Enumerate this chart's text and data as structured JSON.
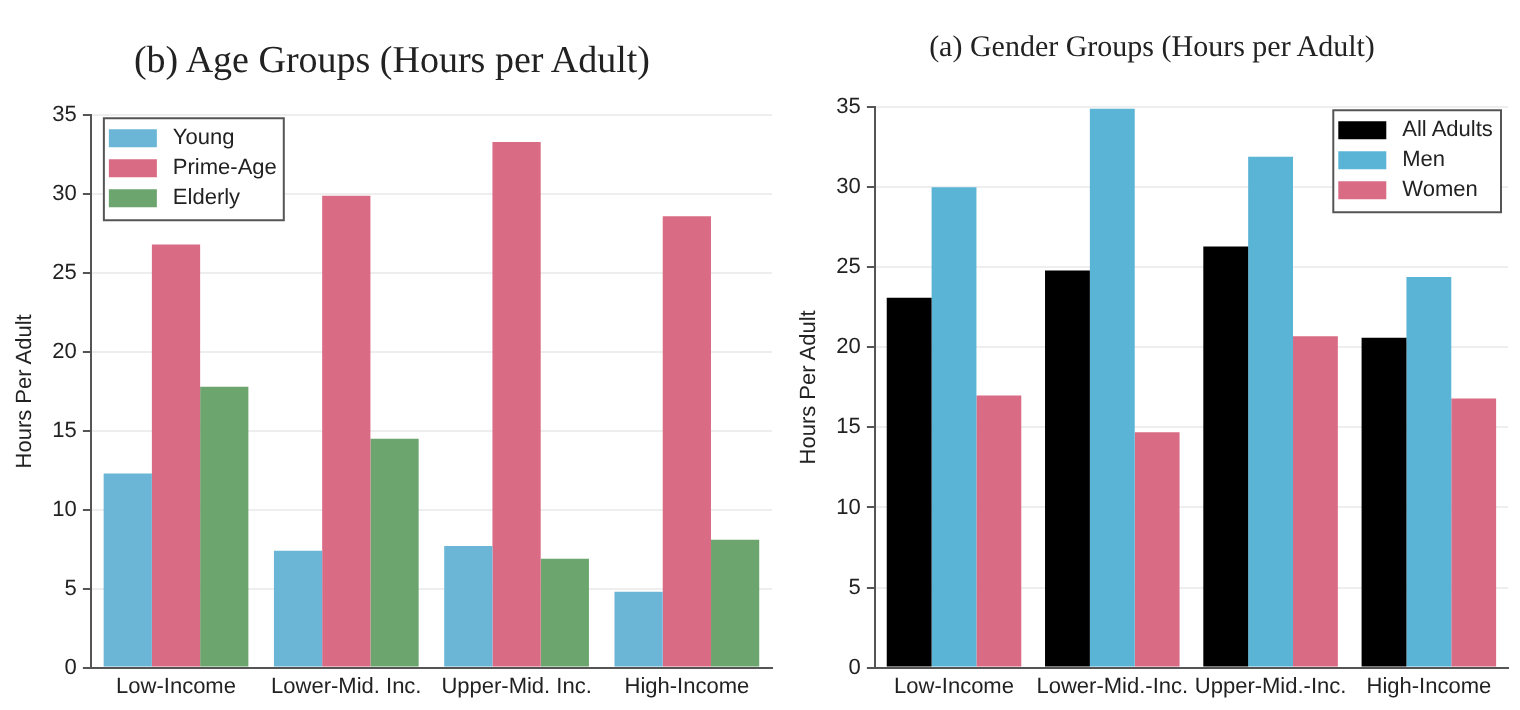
{
  "chart_data": [
    {
      "type": "bar",
      "title": "(b) Age Groups (Hours per Adult)",
      "ylabel": "Hours Per Adult",
      "categories": [
        "Low-Income",
        "Lower-Mid. Inc.",
        "Upper-Mid. Inc.",
        "High-Income"
      ],
      "series": [
        {
          "name": "Young",
          "color": "#6bb6d6",
          "values": [
            12.3,
            7.4,
            7.7,
            4.8
          ]
        },
        {
          "name": "Prime-Age",
          "color": "#d96b85",
          "values": [
            26.8,
            29.9,
            33.3,
            28.6
          ]
        },
        {
          "name": "Elderly",
          "color": "#6da56f",
          "values": [
            17.8,
            14.5,
            6.9,
            8.1
          ]
        }
      ],
      "ylim": [
        0,
        35
      ],
      "yticks": [
        0,
        5,
        10,
        15,
        20,
        25,
        30,
        35
      ],
      "grid": "y",
      "legend": "top left"
    },
    {
      "type": "bar",
      "title": "(a) Gender Groups (Hours per Adult)",
      "ylabel": "Hours Per Adult",
      "categories": [
        "Low-Income",
        "Lower-Mid.-Inc.",
        "Upper-Mid.-Inc.",
        "High-Income"
      ],
      "series": [
        {
          "name": "All Adults",
          "color": "#000000",
          "values": [
            23.1,
            24.8,
            26.3,
            20.6
          ]
        },
        {
          "name": "Men",
          "color": "#5ab4d6",
          "values": [
            30.0,
            34.9,
            31.9,
            24.4
          ]
        },
        {
          "name": "Women",
          "color": "#d96b85",
          "values": [
            17.0,
            14.7,
            20.7,
            16.8
          ]
        }
      ],
      "ylim": [
        0,
        35
      ],
      "yticks": [
        0,
        5,
        10,
        15,
        20,
        25,
        30,
        35
      ],
      "grid": "y",
      "legend": "top right"
    }
  ]
}
